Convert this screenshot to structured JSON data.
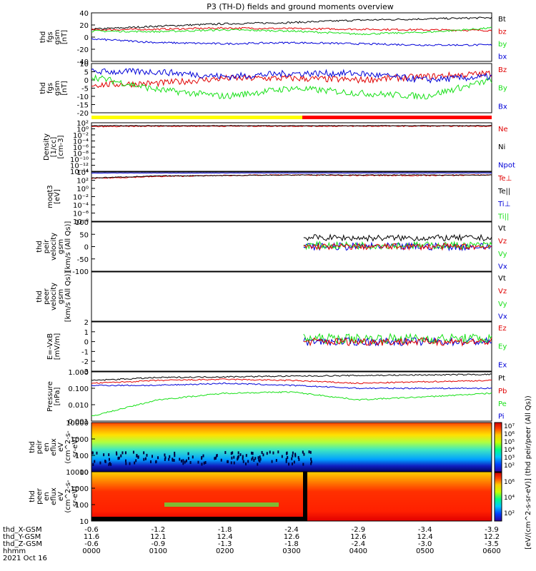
{
  "title": "P3 (TH-D) fields and ground moments overview",
  "colors": {
    "black": "#000000",
    "red": "#e00000",
    "green": "#18e018",
    "blue": "#0000d8",
    "yellow": "#ffff00",
    "darkred": "#8b0000"
  },
  "panels": [
    {
      "id": "fgs",
      "ylabel": [
        "thd",
        "fgs",
        "gsm",
        "[nT]"
      ],
      "ytick_values": [
        "40",
        "20",
        "0",
        "-20",
        "-40"
      ],
      "ylim": [
        -40,
        40
      ],
      "legend": [
        {
          "label": "Bt",
          "color": "#000000"
        },
        {
          "label": "bz",
          "color": "#e00000"
        },
        {
          "label": "by",
          "color": "#18e018"
        },
        {
          "label": "bx",
          "color": "#0000d8"
        }
      ]
    },
    {
      "id": "fgs-zoom",
      "ylabel": [
        "thd",
        "fgs",
        "gsm",
        "[nT]"
      ],
      "ytick_values": [
        "10",
        "5",
        "0",
        "-5",
        "-10",
        "-15",
        "-20"
      ],
      "ylim": [
        -20,
        10
      ],
      "legend": [
        {
          "label": "Bz",
          "color": "#e00000"
        },
        {
          "label": "By",
          "color": "#18e018"
        },
        {
          "label": "Bx",
          "color": "#0000d8"
        }
      ]
    },
    {
      "id": "density",
      "ylabel": [
        "Density",
        "[1/cc]",
        "[cm-3]"
      ],
      "ytick_values": [
        "10²",
        "10⁰",
        "10⁻²",
        "10⁻⁴",
        "10⁻⁶",
        "10⁻⁸",
        "10⁻¹⁰",
        "10⁻¹²",
        "10⁻¹⁴"
      ],
      "legend": [
        {
          "label": "Ne",
          "color": "#e00000"
        },
        {
          "label": "Ni",
          "color": "#000000"
        },
        {
          "label": "Npot",
          "color": "#0000d8"
        }
      ]
    },
    {
      "id": "temperature",
      "ylabel": [
        "moqt3",
        "[eV]"
      ],
      "ytick_values": [
        "10⁴",
        "10²",
        "10⁰",
        "10⁻²",
        "10⁻⁴",
        "10⁻⁶",
        "10⁻⁸"
      ],
      "legend": [
        {
          "label": "Te⊥",
          "color": "#e00000"
        },
        {
          "label": "Te||",
          "color": "#000000"
        },
        {
          "label": "Ti⊥",
          "color": "#0000d8"
        },
        {
          "label": "Ti||",
          "color": "#18e018"
        }
      ]
    },
    {
      "id": "ion-velocity",
      "ylabel": [
        "thd",
        "peir",
        "velocity",
        "gsm",
        "[km/s (All Qs)]"
      ],
      "ytick_values": [
        "100",
        "50",
        "0",
        "-50",
        "-100"
      ],
      "ylim": [
        -100,
        100
      ],
      "legend": [
        {
          "label": "Vt",
          "color": "#000000"
        },
        {
          "label": "Vz",
          "color": "#e00000"
        },
        {
          "label": "Vy",
          "color": "#18e018"
        },
        {
          "label": "Vx",
          "color": "#0000d8"
        }
      ]
    },
    {
      "id": "electron-velocity",
      "ylabel": [
        "thd",
        "peer",
        "velocity",
        "gsm",
        "[km/s (All Qs)]"
      ],
      "ytick_values": [],
      "legend": [
        {
          "label": "Vt",
          "color": "#000000"
        },
        {
          "label": "Vz",
          "color": "#e00000"
        },
        {
          "label": "Vy",
          "color": "#18e018"
        },
        {
          "label": "Vx",
          "color": "#0000d8"
        }
      ]
    },
    {
      "id": "efield",
      "ylabel": [
        "E=-VxB",
        "[mV/m]"
      ],
      "ytick_values": [
        "2",
        "1",
        "0",
        "-1",
        "-2",
        "-3"
      ],
      "ylim": [
        -3,
        2
      ],
      "legend": [
        {
          "label": "Ez",
          "color": "#e00000"
        },
        {
          "label": "Ey",
          "color": "#18e018"
        },
        {
          "label": "Ex",
          "color": "#0000d8"
        }
      ]
    },
    {
      "id": "pressure",
      "ylabel": [
        "Pressure",
        "[nPa]"
      ],
      "ytick_values": [
        "1.000",
        "0.100",
        "0.010",
        "0.001"
      ],
      "legend": [
        {
          "label": "Pt",
          "color": "#000000"
        },
        {
          "label": "Pb",
          "color": "#e00000"
        },
        {
          "label": "Pe",
          "color": "#18e018"
        },
        {
          "label": "Pi",
          "color": "#0000d8"
        }
      ]
    },
    {
      "id": "ion-spectrogram",
      "ylabel": [
        "thd",
        "peir",
        "en",
        "eflux",
        "eV",
        "(cm^2-s-",
        "sr-eV)"
      ],
      "ytick_values": [
        "10000",
        "1000",
        "100",
        "10"
      ]
    },
    {
      "id": "electron-spectrogram",
      "ylabel": [
        "thd",
        "peer",
        "en",
        "eflux",
        "eV",
        "(cm^2-s-",
        "sr-eV)"
      ],
      "ytick_values": [
        "10000",
        "1000",
        "100",
        "10"
      ]
    }
  ],
  "colorbar": {
    "top_ticks": [
      "10⁷",
      "10⁶",
      "10⁵",
      "10⁴",
      "10³",
      "10²"
    ],
    "bottom_ticks": [
      "10⁶",
      "10⁴",
      "10²"
    ],
    "label": "[eV/(cm^2-s-sr-eV)] (thd peir/peer (All Qs))"
  },
  "xaxis": {
    "row_labels": [
      "thd_X-GSM",
      "thd_Y-GSM",
      "thd_Z-GSM",
      "hhmm",
      "2021 Oct 16"
    ],
    "columns": [
      [
        "-0.6",
        "11.6",
        "-0.6",
        "0000"
      ],
      [
        "-1.2",
        "12.1",
        "-0.9",
        "0100"
      ],
      [
        "-1.8",
        "12.4",
        "-1.3",
        "0200"
      ],
      [
        "-2.4",
        "12.6",
        "-1.8",
        "0300"
      ],
      [
        "-2.9",
        "12.6",
        "-2.4",
        "0400"
      ],
      [
        "-3.4",
        "12.4",
        "-3.0",
        "0500"
      ],
      [
        "-3.9",
        "12.2",
        "-3.5",
        "0600"
      ]
    ]
  },
  "chart_data": [
    {
      "type": "line",
      "title": "thd fgs gsm [nT]",
      "xlabel": "hhmm",
      "ylabel": "thd fgs gsm [nT]",
      "x": [
        "0000",
        "0100",
        "0200",
        "0300",
        "0400",
        "0500",
        "0600"
      ],
      "ylim": [
        -40,
        40
      ],
      "series": [
        {
          "name": "Bt",
          "values": [
            13,
            18,
            22,
            24,
            28,
            30,
            32
          ]
        },
        {
          "name": "bz",
          "values": [
            12,
            13,
            15,
            14,
            13,
            12,
            11
          ]
        },
        {
          "name": "by",
          "values": [
            10,
            9,
            12,
            10,
            5,
            8,
            15
          ]
        },
        {
          "name": "bx",
          "values": [
            -3,
            -9,
            -11,
            -9,
            -11,
            -13,
            -13
          ]
        }
      ]
    },
    {
      "type": "line",
      "title": "thd fgs gsm [nT]",
      "x": [
        "0000",
        "0100",
        "0200",
        "0300",
        "0400",
        "0500",
        "0600"
      ],
      "ylim": [
        -20,
        10
      ],
      "series": [
        {
          "name": "Bz",
          "values": [
            -3,
            -2,
            1,
            1,
            0,
            2,
            4
          ]
        },
        {
          "name": "By",
          "values": [
            2,
            -6,
            -10,
            -5,
            -8,
            -10,
            0
          ]
        },
        {
          "name": "Bx",
          "values": [
            5,
            5,
            2,
            4,
            4,
            0,
            2
          ]
        }
      ]
    },
    {
      "type": "line",
      "title": "Density [1/cc]",
      "x": [
        "0000",
        "0100",
        "0200",
        "0300",
        "0400",
        "0500",
        "0600"
      ],
      "series": [
        {
          "name": "Ne",
          "values": [
            0.5,
            0.6,
            0.7,
            0.8,
            0.9,
            0.9,
            0.9
          ]
        }
      ]
    },
    {
      "type": "line",
      "title": "Pressure [nPa]",
      "x": [
        "0000",
        "0100",
        "0200",
        "0300",
        "0400",
        "0500",
        "0600"
      ],
      "series": [
        {
          "name": "Pt",
          "values": [
            0.3,
            0.45,
            0.5,
            0.55,
            0.6,
            0.65,
            0.7
          ]
        },
        {
          "name": "Pb",
          "values": [
            0.2,
            0.3,
            0.35,
            0.3,
            0.2,
            0.25,
            0.3
          ]
        },
        {
          "name": "Pe",
          "values": [
            0.002,
            0.02,
            0.05,
            0.06,
            0.02,
            0.03,
            0.05
          ]
        },
        {
          "name": "Pi",
          "values": [
            0.15,
            0.15,
            0.2,
            0.15,
            0.1,
            0.1,
            0.1
          ]
        }
      ]
    }
  ]
}
